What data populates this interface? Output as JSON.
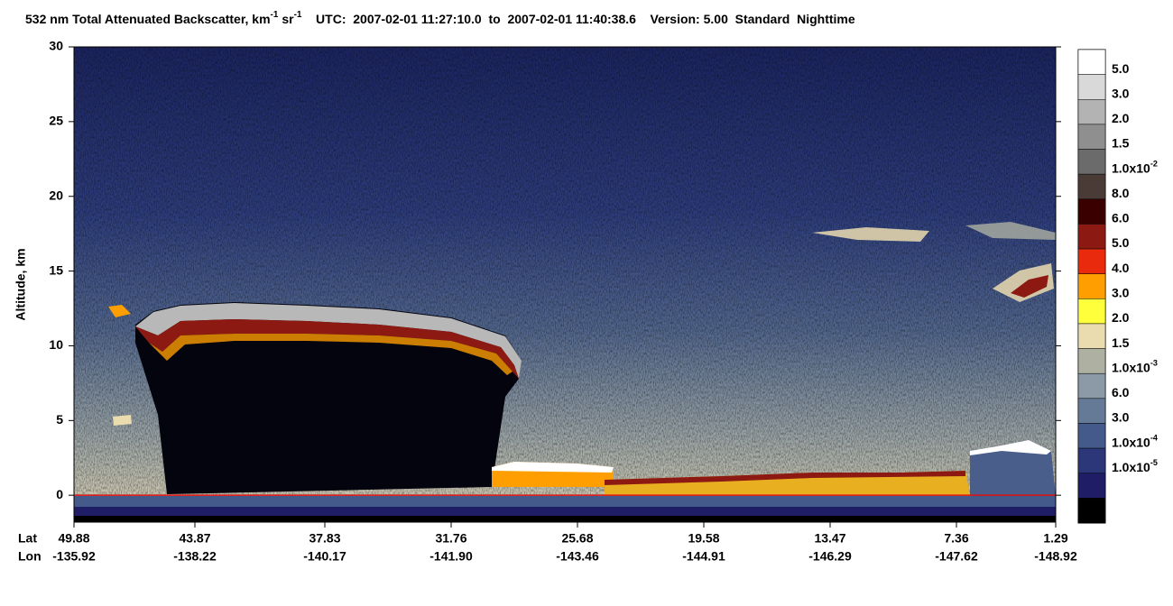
{
  "chart_data": {
    "type": "curtain",
    "title": [
      "532 nm Total Attenuated Backscatter, km",
      "-1",
      " sr",
      "-1",
      "    UTC:  2007-02-01 11:27:10.0  to  2007-02-01 11:40:38.6    Version: 5.00  Standard  Nighttime"
    ],
    "ylabel": "Altitude, km",
    "ylim": [
      -1.8,
      30
    ],
    "yticks": [
      0,
      5,
      10,
      15,
      20,
      25,
      30
    ],
    "surface_line_color": "#e01010",
    "x_row_labels": [
      "Lat",
      "Lon"
    ],
    "x_labels": [
      {
        "lat": "49.88",
        "lon": "-135.92"
      },
      {
        "lat": "43.87",
        "lon": "-138.22"
      },
      {
        "lat": "37.83",
        "lon": "-140.17"
      },
      {
        "lat": "31.76",
        "lon": "-141.90"
      },
      {
        "lat": "25.68",
        "lon": "-143.46"
      },
      {
        "lat": "19.58",
        "lon": "-144.91"
      },
      {
        "lat": "13.47",
        "lon": "-146.29"
      },
      {
        "lat": "7.36",
        "lon": "-147.62"
      },
      {
        "lat": "1.29",
        "lon": "-148.92"
      }
    ],
    "colorbar": {
      "labels": [
        "5.0",
        "3.0",
        "2.0",
        "1.5",
        {
          "text": "1.0x10",
          "sup": "-2"
        },
        "8.0",
        "6.0",
        "5.0",
        "4.0",
        "3.0",
        "2.0",
        "1.5",
        {
          "text": "1.0x10",
          "sup": "-3"
        },
        "6.0",
        "3.0",
        {
          "text": "1.0x10",
          "sup": "-4"
        },
        {
          "text": "1.0x10",
          "sup": "-5"
        }
      ],
      "colors": [
        "#ffffff",
        "#d9d9d9",
        "#b3b3b3",
        "#8f8f8f",
        "#6b6b6b",
        "#4a3b36",
        "#3a0000",
        "#8c1a12",
        "#ea2a0c",
        "#ff9e00",
        "#ffff3c",
        "#ebdcb0",
        "#aeb0a2",
        "#8b9aa6",
        "#647a96",
        "#435a8a",
        "#2b3778",
        "#1e1d66",
        "#000000"
      ]
    }
  }
}
